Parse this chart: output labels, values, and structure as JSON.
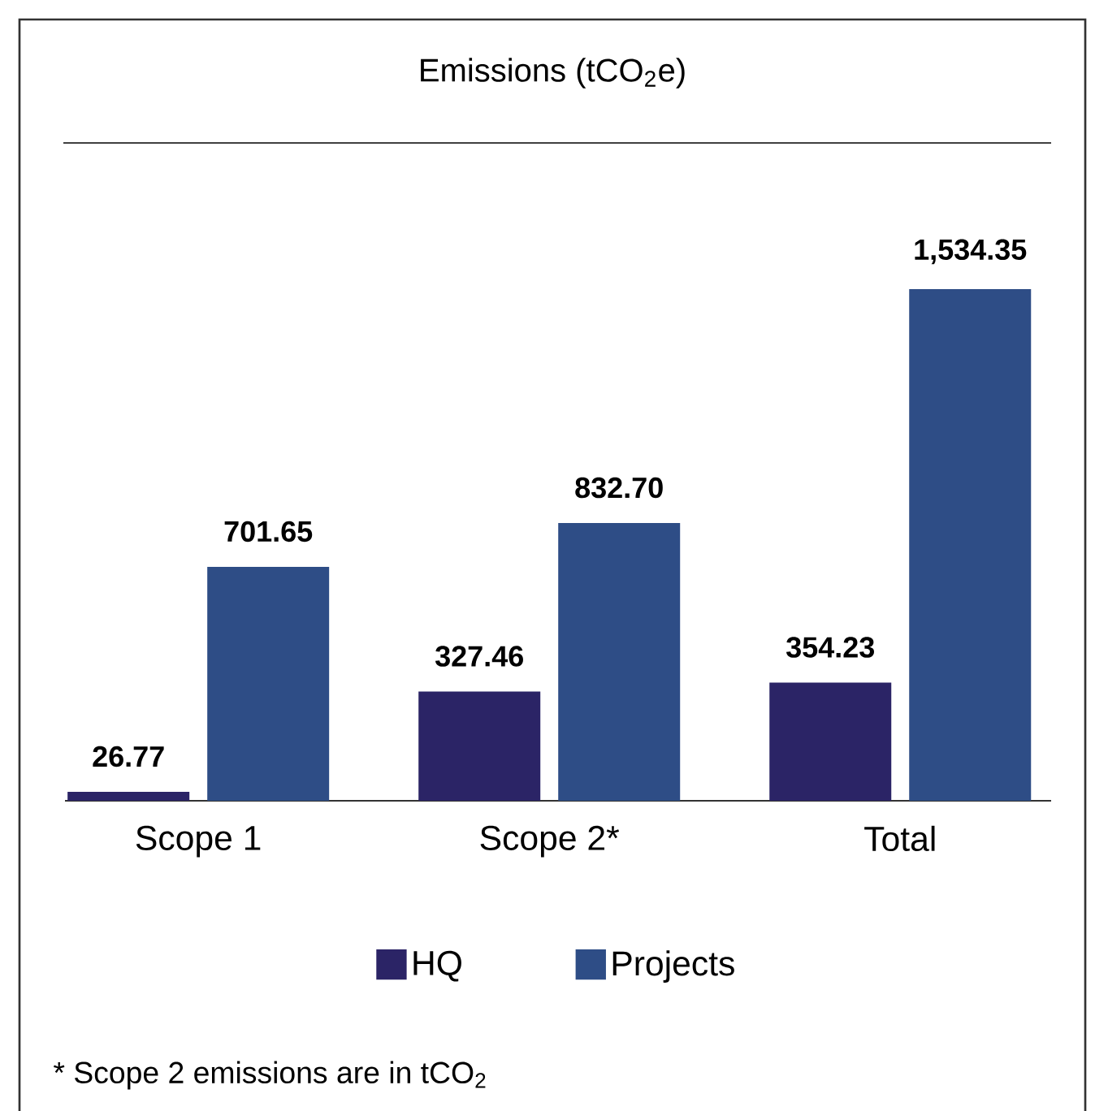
{
  "chart_data": {
    "type": "bar",
    "title": "Emissions (tCO$_{2}$e)",
    "categories": [
      "Scope 1",
      "Scope 2*",
      "Total"
    ],
    "series": [
      {
        "name": "HQ",
        "color": "#2b2466",
        "values": [
          26.77,
          327.46,
          354.23
        ],
        "value_labels": [
          "26.77",
          "327.46",
          "354.23"
        ]
      },
      {
        "name": "Projects",
        "color": "#2e4d86",
        "values": [
          701.65,
          832.7,
          1534.35
        ],
        "value_labels": [
          "701.65",
          "832.70",
          "1,534.35"
        ]
      }
    ],
    "ylim": [
      0,
      1534.35
    ],
    "tick_labels": "x",
    "legend": "bottom",
    "annotations": [
      "* Scope 2 emissions are in tCO$_{2}$"
    ]
  }
}
